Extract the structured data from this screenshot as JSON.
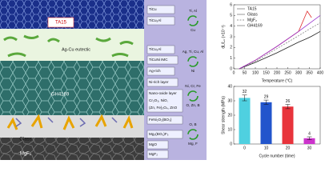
{
  "diagram": {
    "layers": [
      "TA15",
      "Ag-Cu eutectic",
      "GH4169",
      "Glass",
      "MgF₂"
    ],
    "phases": [
      "TiCu",
      "TiCu₂Al",
      "TiCu₂Al",
      "TiCuNi IMC",
      "Ag-rich",
      "Ni-rich layer",
      "Nano-oxide layer",
      "Cr₂O₃, NiO,",
      "(Zn, Fe)₃O₄, ZnO",
      "FeNi₂O₂(BO₃)",
      "Mg₃(BO₃)F₃",
      "MgO",
      "MgF₂"
    ],
    "reactions": [
      {
        "from": "Ti, Al",
        "to": "Cu"
      },
      {
        "from": "Ag, Ti, Cu, Al",
        "to": "Ni"
      },
      {
        "from": "Ni, Cr, Fe",
        "to": "O, Zn, B"
      },
      {
        "from": "O, B",
        "to": "Mg, F"
      }
    ]
  },
  "chart_data": [
    {
      "type": "line",
      "xlabel": "Temperature (°C)",
      "ylabel": "dL/L₀ (×10⁻³)",
      "x": [
        25,
        100,
        200,
        300,
        340,
        360,
        400
      ],
      "series": [
        {
          "name": "TA15",
          "color": "#222222",
          "values": [
            0,
            0.6,
            1.5,
            2.5,
            2.85,
            3.05,
            3.5
          ]
        },
        {
          "name": "Glass",
          "color": "#e03030",
          "values": [
            0,
            0.8,
            2.1,
            3.5,
            5.4,
            4.8,
            null
          ]
        },
        {
          "name": "MgF₂",
          "color": "#888888",
          "dashed": true,
          "values": [
            0,
            0.7,
            1.9,
            3.1,
            3.6,
            3.85,
            4.3
          ]
        },
        {
          "name": "GH4169",
          "color": "#9933cc",
          "values": [
            0,
            0.8,
            2.1,
            3.5,
            4.1,
            4.4,
            5.0
          ]
        }
      ],
      "xlim": [
        0,
        400
      ],
      "xticks": [
        0,
        50,
        100,
        150,
        200,
        250,
        300,
        350,
        400
      ],
      "ylim": [
        0,
        6
      ],
      "yticks": [
        0,
        1,
        2,
        3,
        4,
        5,
        6
      ]
    },
    {
      "type": "bar",
      "xlabel": "Cycle number (time)",
      "ylabel": "Shear strength (MPa)",
      "categories": [
        "0",
        "10",
        "20",
        "30"
      ],
      "values": [
        32,
        29,
        26,
        4
      ],
      "errors": [
        2,
        1.5,
        1.5,
        1
      ],
      "colors": [
        "#4fd0e0",
        "#2255cc",
        "#e8343c",
        "#cc33cc"
      ],
      "ylim": [
        0,
        40
      ],
      "yticks": [
        0,
        10,
        20,
        30,
        40
      ]
    }
  ]
}
